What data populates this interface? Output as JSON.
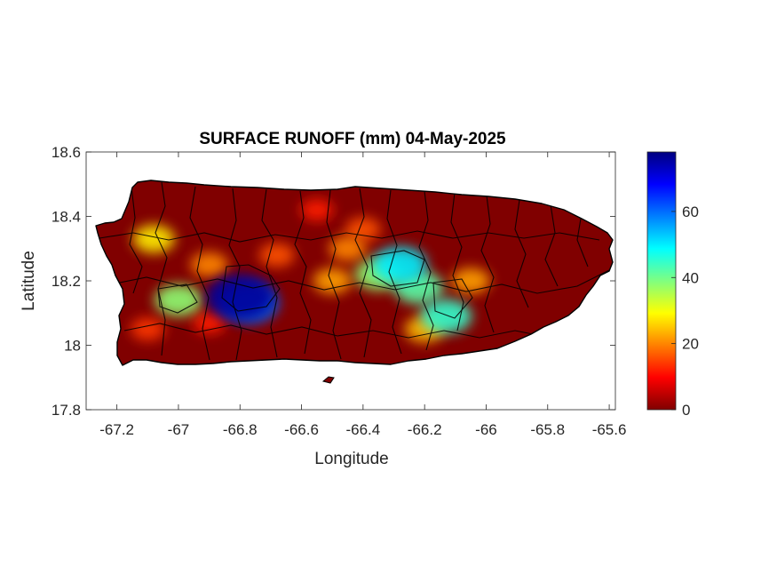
{
  "title": "SURFACE RUNOFF (mm) 04-May-2025",
  "xlabel": "Longitude",
  "ylabel": "Latitude",
  "xaxis": {
    "range": [
      -67.3,
      -65.58
    ],
    "ticks": [
      -67.2,
      -67,
      -66.8,
      -66.6,
      -66.4,
      -66.2,
      -66,
      -65.8,
      -65.6
    ],
    "tick_labels": [
      "-67.2",
      "-67",
      "-66.8",
      "-66.6",
      "-66.4",
      "-66.2",
      "-66",
      "-65.8",
      "-65.6"
    ]
  },
  "yaxis": {
    "range": [
      17.8,
      18.6
    ],
    "ticks": [
      17.8,
      18,
      18.2,
      18.4,
      18.6
    ],
    "tick_labels": [
      "17.8",
      "18",
      "18.2",
      "18.4",
      "18.6"
    ]
  },
  "colorbar": {
    "colormap": "jet",
    "range": [
      0,
      78
    ],
    "ticks": [
      0,
      20,
      40,
      60
    ],
    "tick_labels": [
      "0",
      "20",
      "40",
      "60"
    ]
  },
  "colors": {
    "land_background": "#800000",
    "boundary": "#000000"
  },
  "runoff_hotspots": [
    {
      "lon": -66.8,
      "lat": 18.15,
      "value": 76
    },
    {
      "lon": -66.77,
      "lat": 18.13,
      "value": 60
    },
    {
      "lon": -66.28,
      "lat": 18.25,
      "value": 50
    },
    {
      "lon": -66.35,
      "lat": 18.22,
      "value": 38
    },
    {
      "lon": -66.22,
      "lat": 18.18,
      "value": 42
    },
    {
      "lon": -66.13,
      "lat": 18.09,
      "value": 45
    },
    {
      "lon": -67.0,
      "lat": 18.14,
      "value": 38
    },
    {
      "lon": -67.08,
      "lat": 18.33,
      "value": 28
    },
    {
      "lon": -66.9,
      "lat": 18.25,
      "value": 20
    },
    {
      "lon": -66.68,
      "lat": 18.28,
      "value": 16
    },
    {
      "lon": -66.45,
      "lat": 18.3,
      "value": 20
    },
    {
      "lon": -66.5,
      "lat": 18.2,
      "value": 22
    },
    {
      "lon": -66.2,
      "lat": 18.05,
      "value": 24
    },
    {
      "lon": -66.05,
      "lat": 18.2,
      "value": 22
    },
    {
      "lon": -67.1,
      "lat": 18.05,
      "value": 14
    },
    {
      "lon": -66.55,
      "lat": 18.42,
      "value": 12
    },
    {
      "lon": -66.4,
      "lat": 18.36,
      "value": 16
    },
    {
      "lon": -66.9,
      "lat": 18.07,
      "value": 12
    }
  ]
}
